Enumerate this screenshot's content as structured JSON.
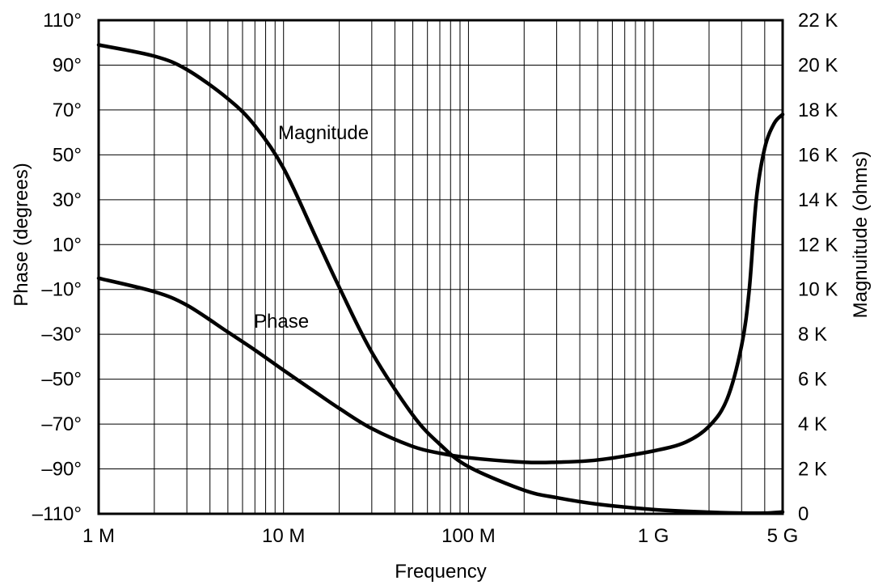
{
  "chart_data": {
    "type": "line",
    "title": "",
    "xlabel": "Frequency",
    "ylabel_left": "Phase (degrees)",
    "ylabel_right": "Magnuitude (ohms)",
    "x_scale": "log",
    "xlim": [
      1000000,
      5000000000
    ],
    "ylim_left": [
      -110,
      110
    ],
    "ylim_right": [
      0,
      22000
    ],
    "grid": true,
    "x_ticks": [
      {
        "value": 1000000,
        "label": "1 M"
      },
      {
        "value": 10000000,
        "label": "10 M"
      },
      {
        "value": 100000000,
        "label": "100 M"
      },
      {
        "value": 1000000000,
        "label": "1 G"
      },
      {
        "value": 5000000000,
        "label": "5 G"
      }
    ],
    "y_ticks_left": [
      {
        "value": 110,
        "label": "110°"
      },
      {
        "value": 90,
        "label": "90°"
      },
      {
        "value": 70,
        "label": "70°"
      },
      {
        "value": 50,
        "label": "50°"
      },
      {
        "value": 30,
        "label": "30°"
      },
      {
        "value": 10,
        "label": "10°"
      },
      {
        "value": -10,
        "label": "–10°"
      },
      {
        "value": -30,
        "label": "–30°"
      },
      {
        "value": -50,
        "label": "–50°"
      },
      {
        "value": -70,
        "label": "–70°"
      },
      {
        "value": -90,
        "label": "–90°"
      },
      {
        "value": -110,
        "label": "–110°"
      }
    ],
    "y_ticks_right": [
      {
        "value": 22000,
        "label": "22 K"
      },
      {
        "value": 20000,
        "label": "20 K"
      },
      {
        "value": 18000,
        "label": "18 K"
      },
      {
        "value": 16000,
        "label": "16 K"
      },
      {
        "value": 14000,
        "label": "14 K"
      },
      {
        "value": 12000,
        "label": "12 K"
      },
      {
        "value": 10000,
        "label": "10 K"
      },
      {
        "value": 8000,
        "label": "8 K"
      },
      {
        "value": 6000,
        "label": "6 K"
      },
      {
        "value": 4000,
        "label": "4 K"
      },
      {
        "value": 2000,
        "label": "2 K"
      },
      {
        "value": 0,
        "label": "0"
      }
    ],
    "series": [
      {
        "name": "Magnitude",
        "axis": "right",
        "x": [
          1000000,
          2000000,
          3000000,
          5000000,
          7000000,
          10000000,
          15000000,
          20000000,
          30000000,
          50000000,
          70000000,
          100000000,
          200000000,
          300000000,
          500000000,
          1000000000,
          2000000000,
          3000000000,
          4000000000,
          5000000000
        ],
        "y": [
          20900,
          20400,
          19800,
          18500,
          17300,
          15400,
          12300,
          10100,
          7200,
          4400,
          3100,
          2100,
          1050,
          720,
          430,
          190,
          70,
          30,
          30,
          80
        ]
      },
      {
        "name": "Phase",
        "axis": "left",
        "x": [
          1000000,
          2000000,
          3000000,
          5000000,
          7000000,
          10000000,
          15000000,
          20000000,
          30000000,
          50000000,
          70000000,
          100000000,
          200000000,
          300000000,
          500000000,
          1000000000,
          1500000000,
          2000000000,
          2500000000,
          3000000000,
          3300000000,
          3600000000,
          4000000000,
          4500000000,
          5000000000
        ],
        "y": [
          -5,
          -11,
          -17,
          -29,
          -37,
          -46,
          -56,
          -63,
          -72,
          -80,
          -83,
          -85,
          -87,
          -87,
          -86,
          -82,
          -78,
          -71,
          -59,
          -35,
          -10,
          30,
          53,
          64,
          68
        ]
      }
    ]
  }
}
